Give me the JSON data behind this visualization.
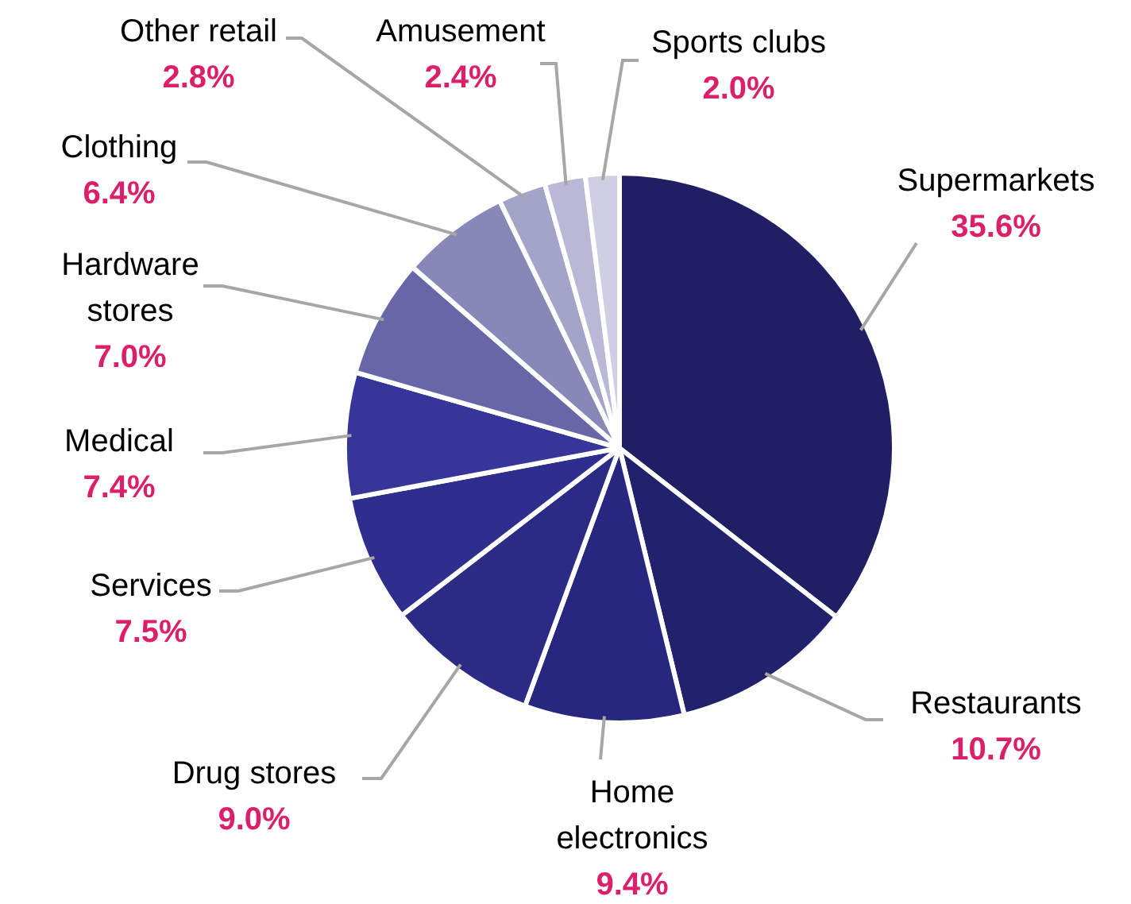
{
  "chart_data": {
    "type": "pie",
    "categories": [
      "Supermarkets",
      "Restaurants",
      "Home electronics",
      "Drug stores",
      "Services",
      "Medical",
      "Hardware stores",
      "Clothing",
      "Other retail",
      "Amusement",
      "Sports clubs"
    ],
    "values": [
      35.6,
      10.7,
      9.4,
      9.0,
      7.5,
      7.4,
      7.0,
      6.4,
      2.8,
      2.4,
      2.0
    ],
    "value_labels": [
      "35.6%",
      "10.7%",
      "9.4%",
      "9.0%",
      "7.5%",
      "7.4%",
      "7.0%",
      "6.4%",
      "2.8%",
      "2.4%",
      "2.0%"
    ],
    "colors": [
      "#201f63",
      "#22226c",
      "#272780",
      "#2b2b85",
      "#2e2e8e",
      "#35359a",
      "#6767a7",
      "#8787b8",
      "#a4a4c8",
      "#b9b9d7",
      "#cfcfe3"
    ]
  }
}
